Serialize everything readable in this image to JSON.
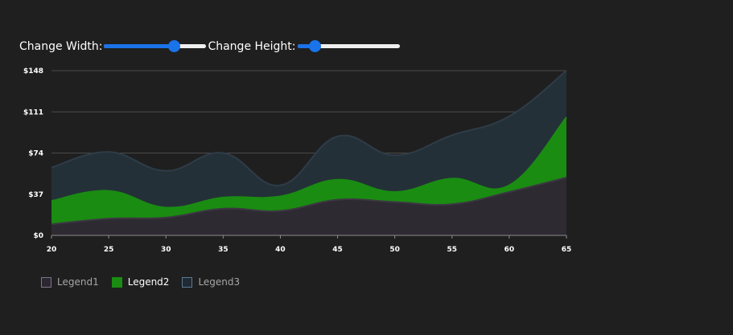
{
  "controls": {
    "width_label": "Change Width:",
    "height_label": "Change Height:",
    "width_value": 0.68,
    "height_value": 0.17
  },
  "chart_data": {
    "type": "area",
    "x": [
      20,
      25,
      30,
      35,
      40,
      45,
      50,
      55,
      60,
      65
    ],
    "xlim": [
      20,
      65
    ],
    "ylim": [
      0,
      148
    ],
    "y_ticks": [
      0,
      37,
      74,
      111,
      148
    ],
    "y_tick_labels": [
      "$0",
      "$37",
      "$74",
      "$111",
      "$148"
    ],
    "x_tick_labels": [
      "20",
      "25",
      "30",
      "35",
      "40",
      "45",
      "50",
      "55",
      "60",
      "65"
    ],
    "grid": true,
    "legend_position": "bottom-left",
    "series": [
      {
        "name": "Legend3",
        "values": [
          61,
          75,
          58,
          74,
          45,
          89,
          72,
          90,
          107,
          148
        ],
        "fill": "#243038",
        "stroke": "#2f3c48",
        "swatch_fill": "#1f2a33",
        "swatch_border": "#5b7a94",
        "active": false
      },
      {
        "name": "Legend2",
        "values": [
          31,
          40,
          25,
          34,
          35,
          50,
          39,
          51,
          45,
          106
        ],
        "fill": "#1a8c12",
        "stroke": "#1a8c12",
        "swatch_fill": "#1a8c12",
        "swatch_border": "#1a8c12",
        "active": true
      },
      {
        "name": "Legend1",
        "values": [
          10,
          15,
          16,
          24,
          22,
          32,
          30,
          28,
          39,
          52
        ],
        "fill": "#2e2a32",
        "stroke": "#3c3742",
        "swatch_fill": "#2b2730",
        "swatch_border": "#7d7589",
        "active": false
      }
    ],
    "colors": {
      "axis": "#8c8c8c",
      "grid": "#4a4a4a",
      "background": "#1f1f1f"
    }
  }
}
